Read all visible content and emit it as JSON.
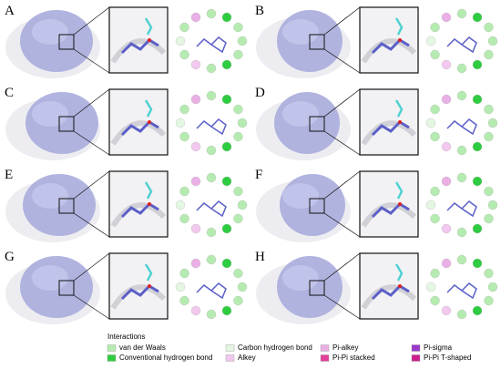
{
  "panels": [
    {
      "label": "A"
    },
    {
      "label": "B"
    },
    {
      "label": "C"
    },
    {
      "label": "D"
    },
    {
      "label": "E"
    },
    {
      "label": "F"
    },
    {
      "label": "G"
    },
    {
      "label": "H"
    }
  ],
  "legend": {
    "title": "Interactions",
    "items": [
      {
        "label": "van der Waals",
        "color": "#b5ebb0"
      },
      {
        "label": "Conventional hydrogen bond",
        "color": "#2ecc40"
      },
      {
        "label": "Carbon hydrogen bond",
        "color": "#e4f7e2"
      },
      {
        "label": "Alkey",
        "color": "#f2c8ee"
      },
      {
        "label": "Pi-alkey",
        "color": "#eab0e6"
      },
      {
        "label": "Pi-Pi stacked",
        "color": "#e0409a"
      },
      {
        "label": "Pi-sigma",
        "color": "#9a38c8"
      },
      {
        "label": "Pi-Pi T-shaped",
        "color": "#cc1f8e"
      }
    ]
  }
}
